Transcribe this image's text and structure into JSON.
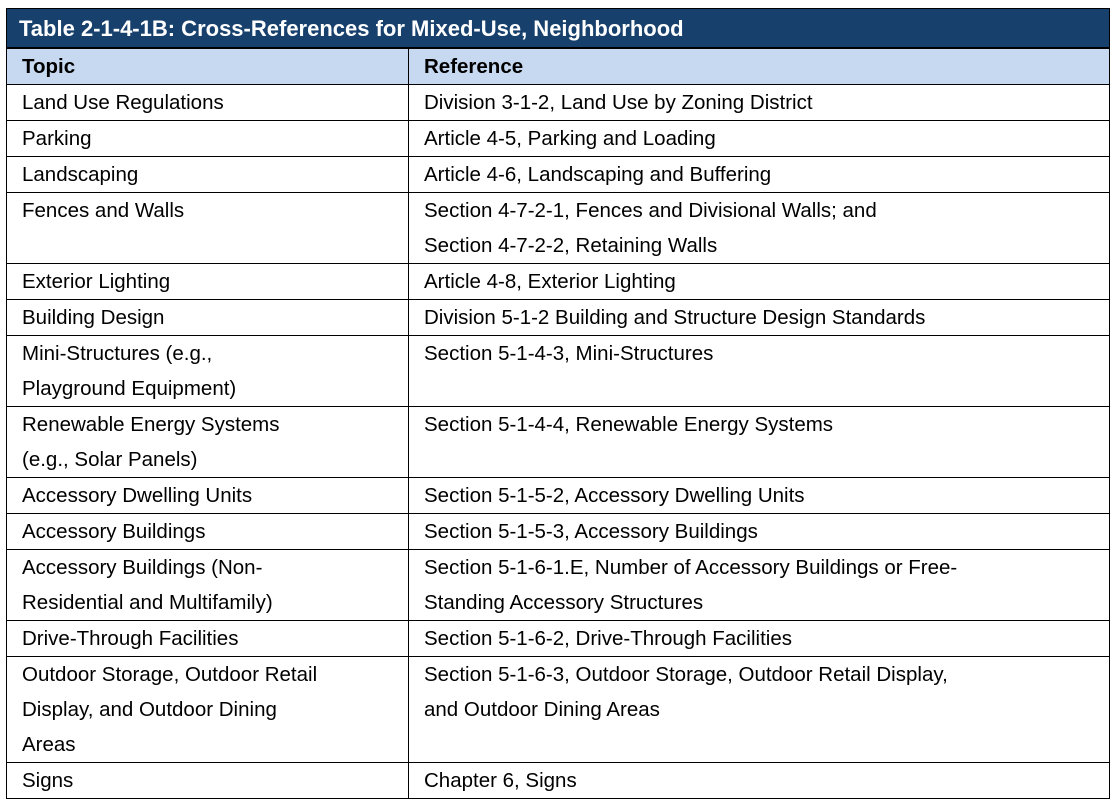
{
  "title": "Table 2-1-4-1B: Cross-References for Mixed-Use, Neighborhood",
  "header": [
    "Topic",
    "Reference"
  ],
  "rows": [
    [
      [
        "Land Use Regulations"
      ],
      [
        "Division 3-1-2, Land Use by Zoning District"
      ]
    ],
    [
      [
        "Parking"
      ],
      [
        "Article 4-5, Parking and Loading"
      ]
    ],
    [
      [
        "Landscaping"
      ],
      [
        "Article 4-6, Landscaping and Buffering"
      ]
    ],
    [
      [
        "Fences and Walls"
      ],
      [
        "Section 4-7-2-1, Fences and Divisional Walls; and",
        "Section 4-7-2-2, Retaining Walls"
      ]
    ],
    [
      [
        "Exterior Lighting"
      ],
      [
        "Article 4-8, Exterior Lighting"
      ]
    ],
    [
      [
        "Building Design"
      ],
      [
        "Division 5-1-2 Building and Structure Design Standards"
      ]
    ],
    [
      [
        "Mini-Structures (e.g.,",
        "Playground Equipment)"
      ],
      [
        "Section 5-1-4-3, Mini-Structures"
      ]
    ],
    [
      [
        "Renewable Energy Systems",
        "(e.g., Solar Panels)"
      ],
      [
        "Section 5-1-4-4, Renewable Energy Systems"
      ]
    ],
    [
      [
        "Accessory Dwelling Units"
      ],
      [
        "Section 5-1-5-2, Accessory Dwelling Units"
      ]
    ],
    [
      [
        "Accessory Buildings"
      ],
      [
        "Section 5-1-5-3, Accessory Buildings"
      ]
    ],
    [
      [
        "Accessory Buildings (Non-",
        "Residential and Multifamily)"
      ],
      [
        "Section 5-1-6-1.E, Number of Accessory Buildings or Free-",
        "Standing Accessory Structures"
      ]
    ],
    [
      [
        "Drive-Through Facilities"
      ],
      [
        "Section 5-1-6-2, Drive-Through Facilities"
      ]
    ],
    [
      [
        "Outdoor Storage, Outdoor Retail",
        "Display, and Outdoor Dining",
        "Areas"
      ],
      [
        "Section 5-1-6-3, Outdoor Storage, Outdoor Retail Display,",
        "and Outdoor Dining Areas"
      ]
    ],
    [
      [
        "Signs"
      ],
      [
        "Chapter 6, Signs"
      ]
    ]
  ]
}
